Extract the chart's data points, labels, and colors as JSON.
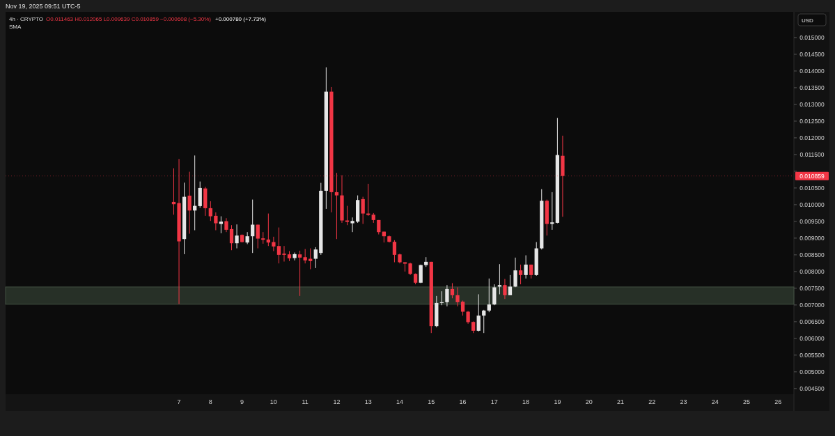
{
  "chart_data": {
    "type": "candlestick",
    "title": "4h · CRYPTO",
    "subtitle": "Nov 19, 2025 09:51 UTC-5",
    "annotations": [
      "O0.011463 H0.012065 L0.009639 C0.010859 −0.000608 (−5.30%)",
      "+0.000780 (+7.73%)",
      "SMA",
      "USD"
    ],
    "x": [
      6.8333,
      7,
      7.1667,
      7.3333,
      7.5,
      7.6667,
      7.8333,
      8,
      8.1667,
      8.3333,
      8.5,
      8.6667,
      8.8333,
      9,
      9.1667,
      9.3333,
      9.5,
      9.6667,
      9.8333,
      10,
      10.1667,
      10.3333,
      10.5,
      10.6667,
      10.8333,
      11,
      11.1667,
      11.3333,
      11.5,
      11.6667,
      11.8333,
      12,
      12.1667,
      12.3333,
      12.5,
      12.6667,
      12.8333,
      13,
      13.1667,
      13.3333,
      13.5,
      13.6667,
      13.8333,
      14,
      14.1667,
      14.3333,
      14.5,
      14.6667,
      14.8333,
      15,
      15.1667,
      15.3333,
      15.5,
      15.6667,
      15.8333,
      16,
      16.1667,
      16.3333,
      16.5,
      16.6667,
      16.8333,
      17,
      17.1667,
      17.3333,
      17.5,
      17.6667,
      17.8333,
      18,
      18.1667,
      18.3333,
      18.5,
      18.6667,
      18.8333,
      19,
      19.1667
    ],
    "ohlc": [
      [
        0.010083,
        0.01109,
        0.0097,
        0.010014
      ],
      [
        0.010049,
        0.011368,
        0.007028,
        0.008903
      ],
      [
        0.008972,
        0.01066,
        0.00852,
        0.010236
      ],
      [
        0.010271,
        0.010986,
        0.009132,
        0.009826
      ],
      [
        0.009826,
        0.011472,
        0.009236,
        0.009965
      ],
      [
        0.009958,
        0.010694,
        0.00991,
        0.0105
      ],
      [
        0.010486,
        0.010535,
        0.009667,
        0.009896
      ],
      [
        0.009896,
        0.010104,
        0.009514,
        0.009653
      ],
      [
        0.009667,
        0.009771,
        0.009236,
        0.009444
      ],
      [
        0.009424,
        0.009653,
        0.009146,
        0.009493
      ],
      [
        0.009507,
        0.009597,
        0.009181,
        0.00925
      ],
      [
        0.009271,
        0.009389,
        0.008639,
        0.008847
      ],
      [
        0.008847,
        0.00941,
        0.008694,
        0.009076
      ],
      [
        0.009097,
        0.009111,
        0.008868,
        0.008882
      ],
      [
        0.008868,
        0.009181,
        0.00882,
        0.009056
      ],
      [
        0.009056,
        0.010153,
        0.008556,
        0.009403
      ],
      [
        0.009403,
        0.009403,
        0.008694,
        0.008986
      ],
      [
        0.008993,
        0.009181,
        0.008833,
        0.008951
      ],
      [
        0.008958,
        0.009736,
        0.008764,
        0.008868
      ],
      [
        0.008882,
        0.009042,
        0.008611,
        0.00875
      ],
      [
        0.008764,
        0.009319,
        0.008243,
        0.0085
      ],
      [
        0.008535,
        0.008764,
        0.008299,
        0.0085
      ],
      [
        0.008514,
        0.008611,
        0.008313,
        0.008396
      ],
      [
        0.008403,
        0.00857,
        0.008333,
        0.008521
      ],
      [
        0.008514,
        0.008625,
        0.007271,
        0.008417
      ],
      [
        0.00843,
        0.008674,
        0.008243,
        0.008333
      ],
      [
        0.008382,
        0.008694,
        0.008069,
        0.008313
      ],
      [
        0.008382,
        0.008729,
        0.008104,
        0.00866
      ],
      [
        0.008556,
        0.010653,
        0.0085,
        0.010417
      ],
      [
        0.010417,
        0.014111,
        0.009875,
        0.013382
      ],
      [
        0.013382,
        0.013521,
        0.009771,
        0.010375
      ],
      [
        0.010375,
        0.010951,
        0.008972,
        0.010278
      ],
      [
        0.010278,
        0.010882,
        0.009458,
        0.009528
      ],
      [
        0.009528,
        0.009965,
        0.009389,
        0.009486
      ],
      [
        0.009444,
        0.009618,
        0.009181,
        0.009514
      ],
      [
        0.009493,
        0.010278,
        0.009458,
        0.010139
      ],
      [
        0.010167,
        0.010236,
        0.009424,
        0.009736
      ],
      [
        0.009736,
        0.010625,
        0.009667,
        0.009694
      ],
      [
        0.009701,
        0.00975,
        0.009458,
        0.009542
      ],
      [
        0.009542,
        0.009542,
        0.009111,
        0.00918
      ],
      [
        0.009194,
        0.009194,
        0.008868,
        0.009056
      ],
      [
        0.009056,
        0.009076,
        0.008868,
        0.008889
      ],
      [
        0.008889,
        0.008938,
        0.008278,
        0.0085
      ],
      [
        0.008514,
        0.008535,
        0.008243,
        0.008278
      ],
      [
        0.008278,
        0.008278,
        0.008,
        0.008236
      ],
      [
        0.008243,
        0.008264,
        0.007896,
        0.007931
      ],
      [
        0.007931,
        0.007944,
        0.007618,
        0.007667
      ],
      [
        0.007667,
        0.008208,
        0.007653,
        0.008194
      ],
      [
        0.008194,
        0.008431,
        0.008139,
        0.008292
      ],
      [
        0.008292,
        0.008292,
        0.00616,
        0.006368
      ],
      [
        0.006368,
        0.007271,
        0.006333,
        0.007062
      ],
      [
        0.007062,
        0.00741,
        0.006993,
        0.007083
      ],
      [
        0.007083,
        0.007597,
        0.006958,
        0.007479
      ],
      [
        0.007479,
        0.007653,
        0.007201,
        0.007292
      ],
      [
        0.007292,
        0.007528,
        0.006958,
        0.007083
      ],
      [
        0.007097,
        0.007132,
        0.006681,
        0.006799
      ],
      [
        0.006799,
        0.006819,
        0.006438,
        0.006486
      ],
      [
        0.006493,
        0.006507,
        0.00616,
        0.006229
      ],
      [
        0.006229,
        0.00732,
        0.006208,
        0.006681
      ],
      [
        0.006681,
        0.006854,
        0.00616,
        0.006833
      ],
      [
        0.006833,
        0.007792,
        0.006785,
        0.007014
      ],
      [
        0.007014,
        0.007618,
        0.006993,
        0.007528
      ],
      [
        0.007549,
        0.008222,
        0.007319,
        0.007597
      ],
      [
        0.007597,
        0.007778,
        0.00718,
        0.007292
      ],
      [
        0.007292,
        0.007896,
        0.007292,
        0.007549
      ],
      [
        0.007549,
        0.008417,
        0.007535,
        0.008035
      ],
      [
        0.008035,
        0.008208,
        0.007618,
        0.007896
      ],
      [
        0.007896,
        0.008486,
        0.007792,
        0.008208
      ],
      [
        0.008208,
        0.008208,
        0.007792,
        0.007896
      ],
      [
        0.007896,
        0.008882,
        0.007875,
        0.008694
      ],
      [
        0.008694,
        0.010465,
        0.00866,
        0.010118
      ],
      [
        0.010118,
        0.010153,
        0.009076,
        0.009424
      ],
      [
        0.009424,
        0.010375,
        0.00925,
        0.009472
      ],
      [
        0.009458,
        0.012597,
        0.009444,
        0.011486
      ],
      [
        0.011463,
        0.012065,
        0.009639,
        0.010859
      ]
    ],
    "colors": [
      "#f23645",
      "#f23645",
      "#e6e6e6",
      "#f23645",
      "#e6e6e6",
      "#e6e6e6",
      "#f23645",
      "#f23645",
      "#f23645",
      "#e6e6e6",
      "#f23645",
      "#f23645",
      "#e6e6e6",
      "#f23645",
      "#e6e6e6",
      "#e6e6e6",
      "#f23645",
      "#f23645",
      "#f23645",
      "#f23645",
      "#f23645",
      "#f23645",
      "#f23645",
      "#e6e6e6",
      "#f23645",
      "#f23645",
      "#f23645",
      "#e6e6e6",
      "#e6e6e6",
      "#e6e6e6",
      "#f23645",
      "#f23645",
      "#f23645",
      "#f23645",
      "#e6e6e6",
      "#e6e6e6",
      "#f23645",
      "#f23645",
      "#f23645",
      "#f23645",
      "#f23645",
      "#f23645",
      "#f23645",
      "#f23645",
      "#f23645",
      "#f23645",
      "#f23645",
      "#e6e6e6",
      "#e6e6e6",
      "#f23645",
      "#e6e6e6",
      "#e6e6e6",
      "#e6e6e6",
      "#f23645",
      "#f23645",
      "#f23645",
      "#f23645",
      "#f23645",
      "#e6e6e6",
      "#e6e6e6",
      "#e6e6e6",
      "#e6e6e6",
      "#e6e6e6",
      "#f23645",
      "#e6e6e6",
      "#e6e6e6",
      "#f23645",
      "#e6e6e6",
      "#f23645",
      "#e6e6e6",
      "#e6e6e6",
      "#f23645",
      "#e6e6e6",
      "#e6e6e6",
      "#f23645"
    ],
    "xlim": [
      1.5,
      26.5
    ],
    "xticks": [
      7,
      8,
      9,
      10,
      11,
      12,
      13,
      14,
      15,
      16,
      17,
      18,
      19,
      20,
      21,
      22,
      23,
      24,
      25,
      26
    ],
    "ylim": [
      0.00433,
      0.01577
    ],
    "yticks": [
      {
        "value": 0.0045,
        "label": "0.004500"
      },
      {
        "value": 0.005,
        "label": "0.005000"
      },
      {
        "value": 0.0055,
        "label": "0.005500"
      },
      {
        "value": 0.006,
        "label": "0.006000"
      },
      {
        "value": 0.0065,
        "label": "0.006500"
      },
      {
        "value": 0.007,
        "label": "0.007000"
      },
      {
        "value": 0.0075,
        "label": "0.007500"
      },
      {
        "value": 0.008,
        "label": "0.008000"
      },
      {
        "value": 0.0085,
        "label": "0.008500"
      },
      {
        "value": 0.009,
        "label": "0.009000"
      },
      {
        "value": 0.0095,
        "label": "0.009500"
      },
      {
        "value": 0.01,
        "label": "0.010000"
      },
      {
        "value": 0.0105,
        "label": "0.010500"
      },
      {
        "value": 0.011,
        "label": null
      },
      {
        "value": 0.0115,
        "label": "0.011500"
      },
      {
        "value": 0.012,
        "label": "0.012000"
      },
      {
        "value": 0.0125,
        "label": "0.012500"
      },
      {
        "value": 0.013,
        "label": "0.013000"
      },
      {
        "value": 0.0135,
        "label": "0.013500"
      },
      {
        "value": 0.014,
        "label": "0.014000"
      },
      {
        "value": 0.0145,
        "label": "0.014500"
      },
      {
        "value": 0.015,
        "label": "0.015000"
      }
    ],
    "bands": [
      {
        "axis": "y",
        "from": 0.00702,
        "to": 0.00754,
        "color": "#2e3a2e"
      }
    ],
    "ref_lines": [
      {
        "axis": "y",
        "value": 0.010859,
        "label": "0.010859",
        "color": "#f23645",
        "line_style": "dotted"
      }
    ]
  }
}
